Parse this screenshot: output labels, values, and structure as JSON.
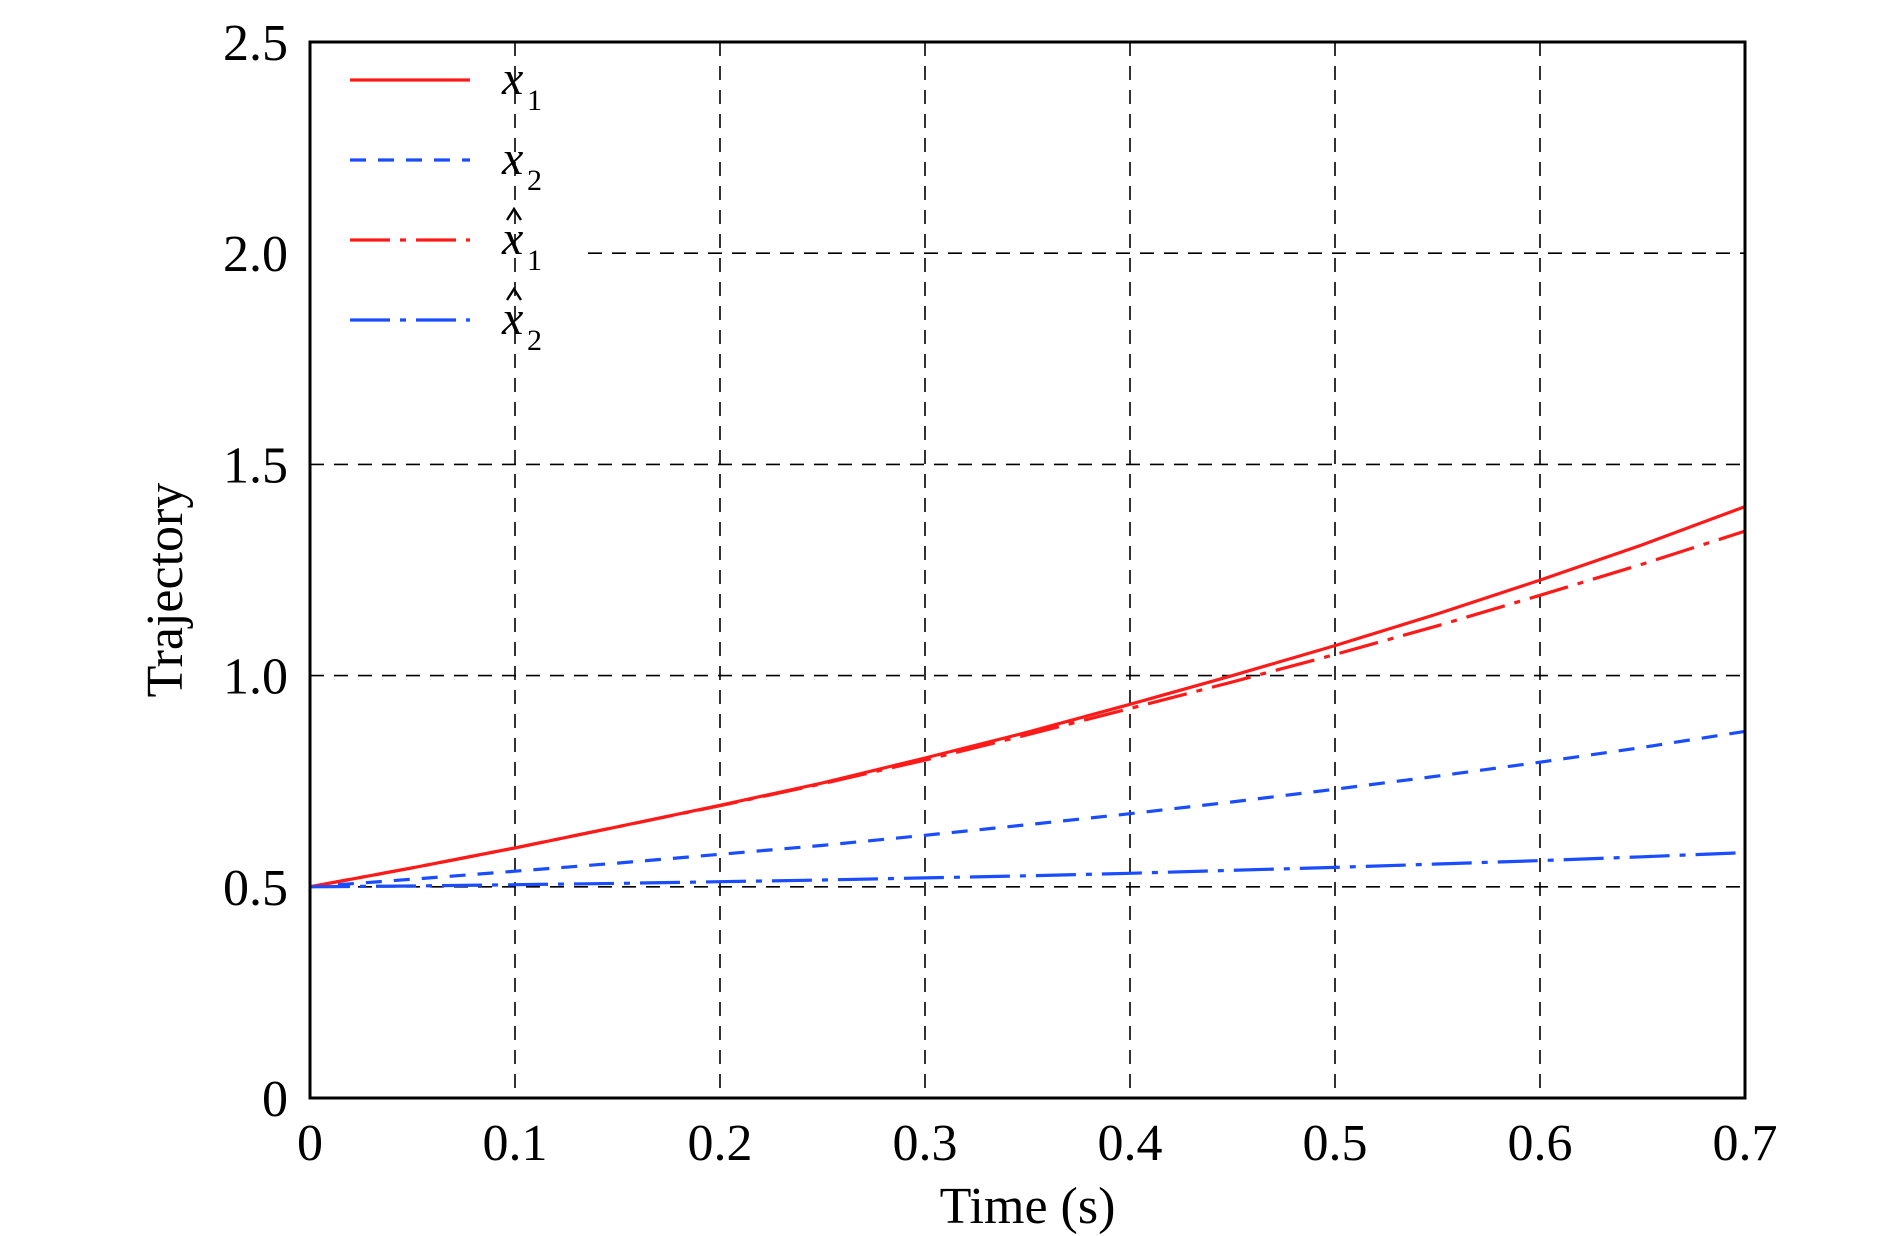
{
  "chart_data": {
    "type": "line",
    "xlabel": "Time (s)",
    "ylabel": "Trajectory",
    "xlim": [
      0,
      0.7
    ],
    "ylim": [
      0,
      2.5
    ],
    "xticks": [
      "0",
      "0.1",
      "0.2",
      "0.3",
      "0.4",
      "0.5",
      "0.6",
      "0.7"
    ],
    "yticks": [
      "0",
      "0.5",
      "1.0",
      "1.5",
      "2.0",
      "2.5"
    ],
    "grid": true,
    "legend_position": "top-left",
    "x": [
      0,
      0.05,
      0.1,
      0.15,
      0.2,
      0.25,
      0.3,
      0.35,
      0.4,
      0.45,
      0.5,
      0.55,
      0.6,
      0.65,
      0.7
    ],
    "series": [
      {
        "name": "x",
        "subscript": "1",
        "hat": false,
        "color": "#ff1a1a",
        "style": "solid",
        "values": [
          0.5,
          0.545,
          0.592,
          0.642,
          0.693,
          0.746,
          0.805,
          0.866,
          0.932,
          1.0,
          1.071,
          1.146,
          1.226,
          1.31,
          1.4
        ]
      },
      {
        "name": "x",
        "subscript": "2",
        "hat": false,
        "color": "#1a4dff",
        "style": "dashed",
        "values": [
          0.5,
          0.518,
          0.537,
          0.556,
          0.577,
          0.598,
          0.622,
          0.647,
          0.673,
          0.701,
          0.731,
          0.762,
          0.795,
          0.83,
          0.868
        ]
      },
      {
        "name": "x",
        "subscript": "1",
        "hat": true,
        "color": "#ff1a1a",
        "style": "dashdot",
        "values": [
          0.5,
          0.545,
          0.592,
          0.642,
          0.692,
          0.744,
          0.8,
          0.86,
          0.922,
          0.985,
          1.05,
          1.118,
          1.19,
          1.264,
          1.342
        ]
      },
      {
        "name": "x",
        "subscript": "2",
        "hat": true,
        "color": "#1a4dff",
        "style": "dashdot",
        "values": [
          0.5,
          0.502,
          0.505,
          0.508,
          0.512,
          0.516,
          0.521,
          0.526,
          0.532,
          0.539,
          0.546,
          0.554,
          0.562,
          0.571,
          0.581
        ]
      }
    ]
  }
}
